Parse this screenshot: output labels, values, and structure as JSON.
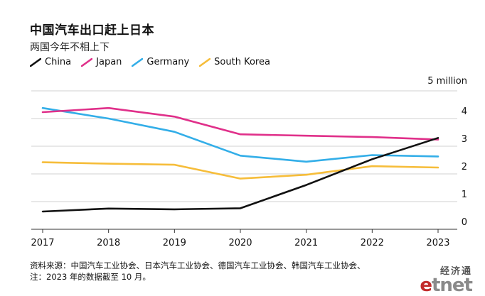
{
  "title": "中国汽车出口赶上日本",
  "subtitle": "两国今年不相上下",
  "source_line1": "资料来源：中国汽车工业协会、日本汽车工业协会、德国汽车工业协会、韩国汽车工业协会、",
  "source_line2": "注：2023 年的数据截至 10 月。",
  "logo": {
    "cn": "经济通",
    "en_e": "e",
    "en_rest": "tnet"
  },
  "colors": {
    "China": "#111111",
    "Japan": "#e0308a",
    "Germany": "#33aee8",
    "South Korea": "#f6bd3a",
    "grid": "#d0d0d0"
  },
  "chart_data": {
    "type": "line",
    "x": [
      2017,
      2018,
      2019,
      2020,
      2021,
      2022,
      2023
    ],
    "ylim": [
      0,
      5
    ],
    "yticks": [
      0,
      1,
      2,
      3,
      4,
      5
    ],
    "ytick_labels": [
      "0",
      "1",
      "2",
      "3",
      "4",
      ""
    ],
    "unit_label": "5 million",
    "legend_position": "top-left",
    "grid": "horizontal",
    "series": [
      {
        "name": "China",
        "values": [
          0.64,
          0.75,
          0.72,
          0.76,
          1.6,
          2.53,
          3.3
        ]
      },
      {
        "name": "Japan",
        "values": [
          4.23,
          4.38,
          4.07,
          3.43,
          3.38,
          3.33,
          3.24
        ]
      },
      {
        "name": "Germany",
        "values": [
          4.38,
          4.0,
          3.52,
          2.66,
          2.44,
          2.68,
          2.63
        ]
      },
      {
        "name": "South Korea",
        "values": [
          2.42,
          2.37,
          2.33,
          1.83,
          1.97,
          2.28,
          2.23
        ]
      }
    ]
  }
}
